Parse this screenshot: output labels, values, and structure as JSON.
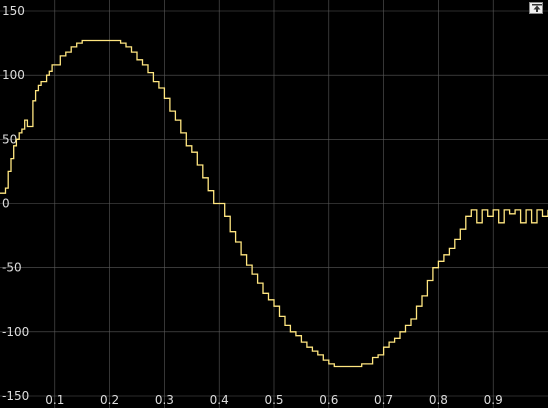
{
  "colors": {
    "background": "#000000",
    "grid": "#5a5a5a",
    "tick_text": "#dcdcdc",
    "signal": "#ffe680"
  },
  "expand_button_icon": "expand-arrow-icon",
  "chart_data": {
    "type": "line",
    "step": true,
    "title": "",
    "xlabel": "",
    "ylabel": "",
    "xlim": [
      0,
      1.0
    ],
    "ylim": [
      -150,
      150
    ],
    "grid": true,
    "x_ticks": [
      0.1,
      0.2,
      0.3,
      0.4,
      0.5,
      0.6,
      0.7,
      0.8,
      0.9
    ],
    "x_tick_labels": [
      "0.1",
      "0.2",
      "0.3",
      "0.4",
      "0.5",
      "0.6",
      "0.7",
      "0.8",
      "0.9"
    ],
    "y_ticks": [
      150,
      100,
      50,
      0,
      -50,
      -100,
      -150
    ],
    "y_tick_labels": [
      "150",
      "100",
      "50",
      "0",
      "-50",
      "-100",
      "-150"
    ],
    "series": [
      {
        "x": [
          0.0,
          0.01,
          0.015,
          0.02,
          0.025,
          0.03,
          0.035,
          0.04,
          0.045,
          0.05,
          0.055,
          0.06,
          0.065,
          0.07,
          0.075,
          0.08,
          0.085,
          0.09,
          0.095,
          0.1,
          0.11,
          0.12,
          0.13,
          0.14,
          0.15,
          0.16,
          0.17,
          0.18,
          0.19,
          0.2,
          0.21,
          0.22,
          0.23,
          0.24,
          0.25,
          0.26,
          0.27,
          0.28,
          0.29,
          0.3,
          0.31,
          0.32,
          0.33,
          0.34,
          0.35,
          0.36,
          0.37,
          0.38,
          0.39,
          0.4,
          0.41,
          0.42,
          0.43,
          0.44,
          0.45,
          0.46,
          0.47,
          0.48,
          0.49,
          0.5,
          0.51,
          0.52,
          0.53,
          0.54,
          0.55,
          0.56,
          0.57,
          0.58,
          0.59,
          0.6,
          0.61,
          0.62,
          0.63,
          0.64,
          0.65,
          0.66,
          0.67,
          0.68,
          0.69,
          0.7,
          0.71,
          0.72,
          0.73,
          0.74,
          0.75,
          0.76,
          0.77,
          0.78,
          0.79,
          0.8,
          0.81,
          0.82,
          0.83,
          0.84,
          0.85,
          0.86,
          0.87,
          0.88,
          0.89,
          0.9,
          0.91,
          0.92,
          0.93,
          0.94,
          0.95,
          0.96,
          0.97,
          0.98,
          0.99,
          1.0
        ],
        "y": [
          8,
          12,
          25,
          35,
          45,
          50,
          55,
          58,
          65,
          60,
          60,
          80,
          88,
          92,
          95,
          95,
          100,
          103,
          108,
          108,
          115,
          118,
          122,
          125,
          127,
          127,
          127,
          127,
          127,
          127,
          127,
          125,
          122,
          118,
          112,
          108,
          102,
          95,
          90,
          82,
          72,
          65,
          55,
          45,
          40,
          30,
          20,
          10,
          0,
          0,
          -10,
          -22,
          -30,
          -40,
          -48,
          -55,
          -62,
          -70,
          -75,
          -80,
          -88,
          -95,
          -100,
          -103,
          -108,
          -112,
          -115,
          -118,
          -122,
          -125,
          -127,
          -127,
          -127,
          -127,
          -127,
          -125,
          -125,
          -120,
          -118,
          -112,
          -108,
          -105,
          -100,
          -95,
          -90,
          -80,
          -72,
          -60,
          -50,
          -45,
          -40,
          -35,
          -28,
          -20,
          -10,
          -5,
          -15,
          -5,
          -10,
          -5,
          -15,
          -5,
          -8,
          -5,
          -15,
          -5,
          -15,
          -5,
          -10,
          -5
        ]
      }
    ]
  }
}
